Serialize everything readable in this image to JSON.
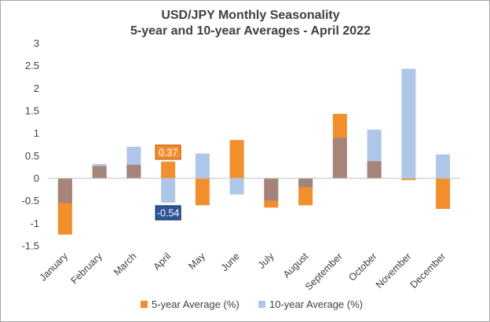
{
  "chart_data": {
    "type": "bar",
    "title": "USD/JPY Monthly Seasonality",
    "subtitle": "5-year and 10-year Averages - April 2022",
    "categories": [
      "January",
      "February",
      "March",
      "April",
      "May",
      "June",
      "July",
      "August",
      "September",
      "October",
      "November",
      "December"
    ],
    "series": [
      {
        "name": "5-year Average (%)",
        "color": "#f28e2b",
        "values": [
          -1.25,
          0.27,
          0.3,
          0.37,
          -0.6,
          0.85,
          -0.65,
          -0.6,
          1.43,
          0.38,
          -0.04,
          -0.68
        ]
      },
      {
        "name": "10-year Average (%)",
        "color": "#aec7e8",
        "values": [
          -0.55,
          0.32,
          0.7,
          -0.54,
          0.55,
          -0.36,
          -0.5,
          -0.2,
          0.9,
          1.08,
          2.43,
          0.53
        ]
      }
    ],
    "overlap_color": "#a5857a",
    "ylim": [
      -1.5,
      3
    ],
    "yticks": [
      -1.5,
      -1,
      -0.5,
      0,
      0.5,
      1,
      1.5,
      2,
      2.5,
      3
    ],
    "ytick_labels": [
      "-1.5",
      "-1",
      "-0.5",
      "0",
      "0.5",
      "1",
      "1.5",
      "2",
      "2.5",
      "3"
    ],
    "grid": false,
    "legend_position": "bottom",
    "annotations": [
      {
        "category": "April",
        "series": "5-year Average (%)",
        "text": "0.37",
        "fill": "#f28e2b",
        "border": "#c0590f"
      },
      {
        "category": "April",
        "series": "10-year Average (%)",
        "text": "-0.54",
        "fill": "#2e5597",
        "border": "#1f3a6b"
      }
    ]
  }
}
